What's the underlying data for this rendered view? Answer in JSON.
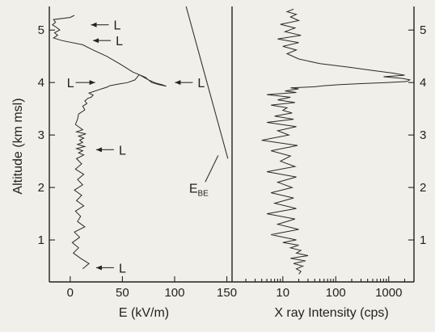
{
  "chart_data": [
    {
      "type": "line",
      "ylabel": "Altitude (km msl)",
      "xlabel": "E (kV/m)",
      "xlim": [
        -20,
        155
      ],
      "ylim": [
        0.2,
        5.45
      ],
      "xticks": [
        "0",
        "50",
        "100",
        "150"
      ],
      "yticks": [
        "1",
        "2",
        "3",
        "4",
        "5"
      ],
      "series": [
        {
          "x": [
            12,
            18,
            10,
            3,
            8,
            2,
            9,
            4,
            14,
            7,
            10,
            5,
            13,
            6,
            11,
            4,
            12,
            7,
            13,
            5,
            11,
            6,
            13,
            8,
            12,
            6,
            14,
            7,
            12,
            9,
            13,
            8,
            15,
            6,
            12,
            5,
            7,
            8,
            14,
            12,
            16,
            14,
            17,
            20,
            22,
            18,
            24,
            27,
            30,
            35,
            38,
            46,
            55,
            62,
            66,
            75,
            82,
            88,
            92,
            85,
            78,
            72,
            60,
            48,
            35,
            22,
            12,
            -8,
            -16,
            -12,
            -15,
            -10,
            -13,
            -17,
            -14,
            -16,
            0,
            4
          ],
          "y": [
            0.45,
            0.55,
            0.65,
            0.75,
            0.85,
            0.95,
            1.05,
            1.15,
            1.25,
            1.35,
            1.45,
            1.55,
            1.65,
            1.75,
            1.85,
            1.95,
            2.05,
            2.15,
            2.25,
            2.35,
            2.45,
            2.55,
            2.62,
            2.66,
            2.7,
            2.74,
            2.78,
            2.82,
            2.86,
            2.9,
            2.94,
            2.98,
            3.02,
            3.06,
            3.1,
            3.2,
            3.3,
            3.4,
            3.48,
            3.55,
            3.6,
            3.65,
            3.7,
            3.72,
            3.76,
            3.8,
            3.84,
            3.86,
            3.88,
            3.91,
            3.94,
            3.97,
            4.0,
            4.05,
            4.15,
            4.05,
            3.99,
            3.96,
            3.93,
            3.96,
            4.0,
            4.1,
            4.2,
            4.35,
            4.5,
            4.62,
            4.72,
            4.8,
            4.85,
            4.9,
            4.95,
            5.0,
            5.05,
            5.1,
            5.15,
            5.2,
            5.24,
            5.28
          ]
        }
      ],
      "annotations": [
        {
          "text": "L",
          "x": 40,
          "y": 5.1
        },
        {
          "text": "L",
          "x": 42,
          "y": 4.8
        },
        {
          "text": "L",
          "x": 13,
          "y": 4.0
        },
        {
          "text": "L",
          "x": 122,
          "y": 4.0
        },
        {
          "text": "L",
          "x": 45,
          "y": 2.72
        },
        {
          "text": "L",
          "x": 45,
          "y": 0.47
        }
      ],
      "reference_line": {
        "label": "E",
        "label_subscript": "BE",
        "x": [
          111,
          151
        ],
        "y": [
          5.45,
          2.55
        ]
      }
    },
    {
      "type": "line",
      "xlabel": "X ray Intensity (cps)",
      "xscale": "log",
      "xlim": [
        1.1,
        3000
      ],
      "ylim": [
        0.2,
        5.45
      ],
      "xticks": [
        "10",
        "100",
        "1000"
      ],
      "yticks": [
        "1",
        "2",
        "3",
        "4",
        "5"
      ],
      "series": [
        {
          "x": [
            20,
            22,
            18,
            24,
            16,
            27,
            14,
            30,
            18,
            22,
            14,
            20,
            10,
            18,
            6,
            20,
            8,
            17,
            5,
            18,
            7,
            16,
            6,
            15,
            8,
            18,
            5,
            17,
            9,
            14,
            6,
            19,
            4,
            13,
            8,
            18,
            5,
            16,
            7,
            15,
            10,
            12,
            6,
            17,
            8,
            14,
            5,
            18,
            11,
            15,
            20,
            14,
            40,
            60,
            120,
            300,
            900,
            2200,
            2500,
            1800,
            800,
            2000,
            1200,
            500,
            180,
            50,
            20,
            12,
            18,
            10,
            20,
            8,
            22,
            11,
            17,
            9,
            20,
            14,
            18,
            12,
            16
          ],
          "y": [
            0.35,
            0.4,
            0.45,
            0.5,
            0.55,
            0.6,
            0.65,
            0.7,
            0.75,
            0.8,
            0.85,
            0.9,
            0.95,
            1.0,
            1.1,
            1.2,
            1.3,
            1.4,
            1.5,
            1.6,
            1.7,
            1.8,
            1.9,
            2.0,
            2.1,
            2.2,
            2.3,
            2.4,
            2.5,
            2.6,
            2.7,
            2.8,
            2.9,
            3.0,
            3.08,
            3.16,
            3.24,
            3.3,
            3.36,
            3.42,
            3.47,
            3.52,
            3.57,
            3.62,
            3.67,
            3.72,
            3.77,
            3.81,
            3.84,
            3.86,
            3.88,
            3.9,
            3.92,
            3.94,
            3.96,
            3.98,
            4.0,
            4.02,
            4.05,
            4.08,
            4.11,
            4.14,
            4.18,
            4.23,
            4.29,
            4.36,
            4.45,
            4.55,
            4.62,
            4.69,
            4.76,
            4.83,
            4.9,
            4.97,
            5.04,
            5.11,
            5.18,
            5.25,
            5.3,
            5.35,
            5.4
          ]
        }
      ]
    }
  ]
}
